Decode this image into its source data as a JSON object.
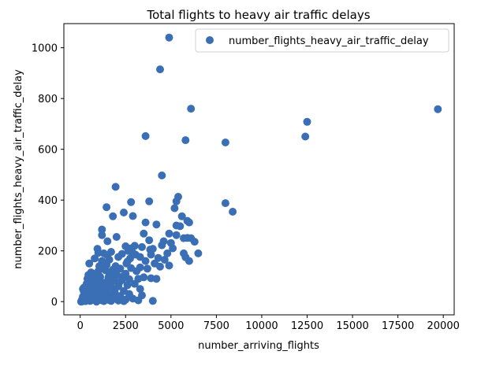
{
  "chart_data": {
    "type": "scatter",
    "title": "Total flights to heavy air traffic delays",
    "xlabel": "number_arriving_flights",
    "ylabel": "number_flights_heavy_air_traffic_delay",
    "xlim": [
      -900,
      20600
    ],
    "ylim": [
      -52,
      1095
    ],
    "x_ticks": [
      0,
      2500,
      5000,
      7500,
      10000,
      12500,
      15000,
      17500,
      20000
    ],
    "y_ticks": [
      0,
      200,
      400,
      600,
      800,
      1000
    ],
    "grid": false,
    "legend_position": "top-right",
    "marker_color": "#3a6fb5",
    "series": [
      {
        "name": "number_flights_heavy_air_traffic_delay",
        "points": [
          [
            4900,
            1040
          ],
          [
            4400,
            915
          ],
          [
            6100,
            760
          ],
          [
            19700,
            758
          ],
          [
            12500,
            708
          ],
          [
            3600,
            652
          ],
          [
            12400,
            650
          ],
          [
            5800,
            636
          ],
          [
            8000,
            627
          ],
          [
            4500,
            497
          ],
          [
            1950,
            452
          ],
          [
            5400,
            413
          ],
          [
            3800,
            395
          ],
          [
            2800,
            392
          ],
          [
            8000,
            388
          ],
          [
            5200,
            368
          ],
          [
            1450,
            372
          ],
          [
            5300,
            395
          ],
          [
            5900,
            318
          ],
          [
            8400,
            354
          ],
          [
            2400,
            351
          ],
          [
            2900,
            337
          ],
          [
            1800,
            336
          ],
          [
            5600,
            336
          ],
          [
            6000,
            312
          ],
          [
            6100,
            250
          ],
          [
            4200,
            304
          ],
          [
            5300,
            300
          ],
          [
            3600,
            312
          ],
          [
            5500,
            297
          ],
          [
            1200,
            284
          ],
          [
            4900,
            268
          ],
          [
            3500,
            268
          ],
          [
            5300,
            262
          ],
          [
            5700,
            250
          ],
          [
            5900,
            251
          ],
          [
            1200,
            262
          ],
          [
            2000,
            255
          ],
          [
            6300,
            236
          ],
          [
            1500,
            238
          ],
          [
            4600,
            238
          ],
          [
            5000,
            231
          ],
          [
            3800,
            242
          ],
          [
            4500,
            222
          ],
          [
            3000,
            220
          ],
          [
            2500,
            218
          ],
          [
            4000,
            208
          ],
          [
            950,
            208
          ],
          [
            3400,
            215
          ],
          [
            2800,
            210
          ],
          [
            1700,
            196
          ],
          [
            1000,
            192
          ],
          [
            6500,
            190
          ],
          [
            5700,
            190
          ],
          [
            4800,
            190
          ],
          [
            2900,
            192
          ],
          [
            2300,
            188
          ],
          [
            1300,
            190
          ],
          [
            3900,
            185
          ],
          [
            3300,
            176
          ],
          [
            1500,
            182
          ],
          [
            5800,
            175
          ],
          [
            4300,
            172
          ],
          [
            2100,
            176
          ],
          [
            800,
            170
          ],
          [
            1600,
            165
          ],
          [
            2600,
            158
          ],
          [
            6000,
            160
          ],
          [
            3600,
            160
          ],
          [
            1200,
            160
          ],
          [
            500,
            150
          ],
          [
            4900,
            142
          ],
          [
            4400,
            138
          ],
          [
            3300,
            135
          ],
          [
            2800,
            132
          ],
          [
            2200,
            130
          ],
          [
            1800,
            126
          ],
          [
            1400,
            123
          ],
          [
            1000,
            120
          ],
          [
            600,
            115
          ],
          [
            3100,
            120
          ],
          [
            2500,
            110
          ],
          [
            2000,
            105
          ],
          [
            1600,
            102
          ],
          [
            1100,
            98
          ],
          [
            700,
            95
          ],
          [
            400,
            90
          ],
          [
            3900,
            92
          ],
          [
            3500,
            96
          ],
          [
            3200,
            90
          ],
          [
            4200,
            90
          ],
          [
            2700,
            88
          ],
          [
            2300,
            85
          ],
          [
            1900,
            82
          ],
          [
            1500,
            80
          ],
          [
            1200,
            76
          ],
          [
            900,
            72
          ],
          [
            600,
            68
          ],
          [
            300,
            60
          ],
          [
            3000,
            70
          ],
          [
            2600,
            65
          ],
          [
            2100,
            60
          ],
          [
            1700,
            58
          ],
          [
            1300,
            54
          ],
          [
            1000,
            50
          ],
          [
            700,
            48
          ],
          [
            400,
            44
          ],
          [
            200,
            40
          ],
          [
            3300,
            50
          ],
          [
            2400,
            42
          ],
          [
            1900,
            38
          ],
          [
            1500,
            35
          ],
          [
            1100,
            32
          ],
          [
            800,
            30
          ],
          [
            500,
            28
          ],
          [
            300,
            24
          ],
          [
            150,
            20
          ],
          [
            2700,
            30
          ],
          [
            2200,
            22
          ],
          [
            1800,
            20
          ],
          [
            1400,
            18
          ],
          [
            1000,
            16
          ],
          [
            700,
            14
          ],
          [
            450,
            12
          ],
          [
            250,
            10
          ],
          [
            100,
            8
          ],
          [
            2000,
            10
          ],
          [
            2500,
            8
          ],
          [
            1600,
            6
          ],
          [
            1200,
            5
          ],
          [
            850,
            4
          ],
          [
            550,
            3
          ],
          [
            300,
            2
          ],
          [
            120,
            1
          ],
          [
            50,
            0
          ],
          [
            900,
            0
          ],
          [
            1300,
            2
          ],
          [
            1700,
            3
          ],
          [
            2100,
            4
          ],
          [
            2400,
            2
          ],
          [
            3200,
            5
          ],
          [
            4000,
            3
          ],
          [
            2900,
            12
          ],
          [
            3400,
            25
          ],
          [
            600,
            85
          ],
          [
            850,
            110
          ],
          [
            350,
            70
          ],
          [
            200,
            55
          ],
          [
            500,
            40
          ],
          [
            650,
            25
          ],
          [
            950,
            60
          ],
          [
            1150,
            45
          ],
          [
            1350,
            70
          ],
          [
            1550,
            95
          ],
          [
            1750,
            120
          ],
          [
            1950,
            140
          ],
          [
            2150,
            75
          ],
          [
            2350,
            100
          ],
          [
            2550,
            150
          ],
          [
            2750,
            170
          ],
          [
            3050,
            185
          ],
          [
            750,
            100
          ],
          [
            450,
            105
          ],
          [
            250,
            30
          ],
          [
            150,
            50
          ],
          [
            1050,
            140
          ],
          [
            1250,
            130
          ],
          [
            1450,
            145
          ],
          [
            1650,
            88
          ],
          [
            1850,
            100
          ],
          [
            2050,
            125
          ],
          [
            880,
            78
          ],
          [
            620,
            55
          ],
          [
            420,
            35
          ],
          [
            3700,
            130
          ],
          [
            4100,
            150
          ],
          [
            3850,
            205
          ],
          [
            4650,
            165
          ],
          [
            5100,
            210
          ],
          [
            2650,
            200
          ]
        ]
      }
    ]
  }
}
